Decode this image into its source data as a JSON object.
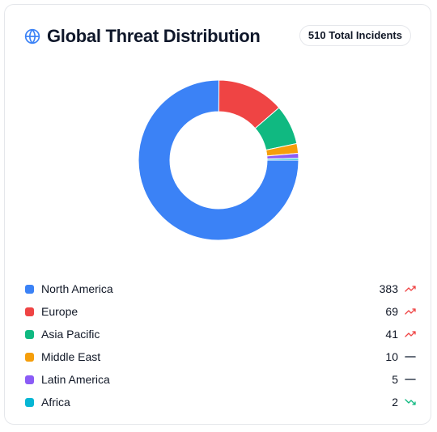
{
  "header": {
    "title": "Global Threat Distribution",
    "badge": "510 Total Incidents"
  },
  "colors": {
    "accent": "#3b82f6",
    "trend_up": "#ef4444",
    "trend_down": "#10b981",
    "trend_flat": "#374151"
  },
  "chart_data": {
    "type": "pie",
    "donut": true,
    "categories": [
      "North America",
      "Europe",
      "Asia Pacific",
      "Middle East",
      "Latin America",
      "Africa"
    ],
    "values": [
      383,
      69,
      41,
      10,
      5,
      2
    ],
    "colors": [
      "#3b82f6",
      "#ef4444",
      "#10b981",
      "#f59e0b",
      "#8b5cf6",
      "#06b6d4"
    ],
    "total": 510
  },
  "legend": [
    {
      "label": "North America",
      "value": "383",
      "trend": "up",
      "color": "#3b82f6"
    },
    {
      "label": "Europe",
      "value": "69",
      "trend": "up",
      "color": "#ef4444"
    },
    {
      "label": "Asia Pacific",
      "value": "41",
      "trend": "up",
      "color": "#10b981"
    },
    {
      "label": "Middle East",
      "value": "10",
      "trend": "flat",
      "color": "#f59e0b"
    },
    {
      "label": "Latin America",
      "value": "5",
      "trend": "flat",
      "color": "#8b5cf6"
    },
    {
      "label": "Africa",
      "value": "2",
      "trend": "down",
      "color": "#06b6d4"
    }
  ]
}
